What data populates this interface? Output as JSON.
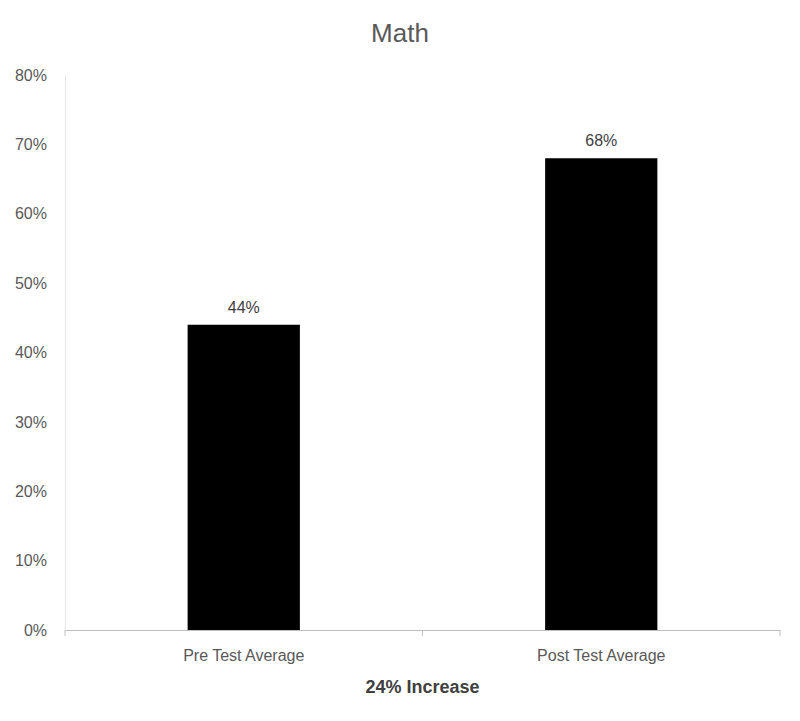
{
  "chart_data": {
    "type": "bar",
    "title": "Math",
    "categories": [
      "Pre Test Average",
      "Post Test Average"
    ],
    "values": [
      44,
      68
    ],
    "value_labels": [
      "44%",
      "68%"
    ],
    "color": "#000000",
    "x_label": "24% Increase",
    "ylim": [
      0,
      80
    ],
    "yticks": [
      {
        "value": 0,
        "label": "0%"
      },
      {
        "value": 10,
        "label": "10%"
      },
      {
        "value": 20,
        "label": "20%"
      },
      {
        "value": 30,
        "label": "30%"
      },
      {
        "value": 40,
        "label": "40%"
      },
      {
        "value": 50,
        "label": "50%"
      },
      {
        "value": 60,
        "label": "60%"
      },
      {
        "value": 70,
        "label": "70%"
      },
      {
        "value": 80,
        "label": "80%"
      }
    ],
    "grid": false,
    "data_labels": true
  }
}
